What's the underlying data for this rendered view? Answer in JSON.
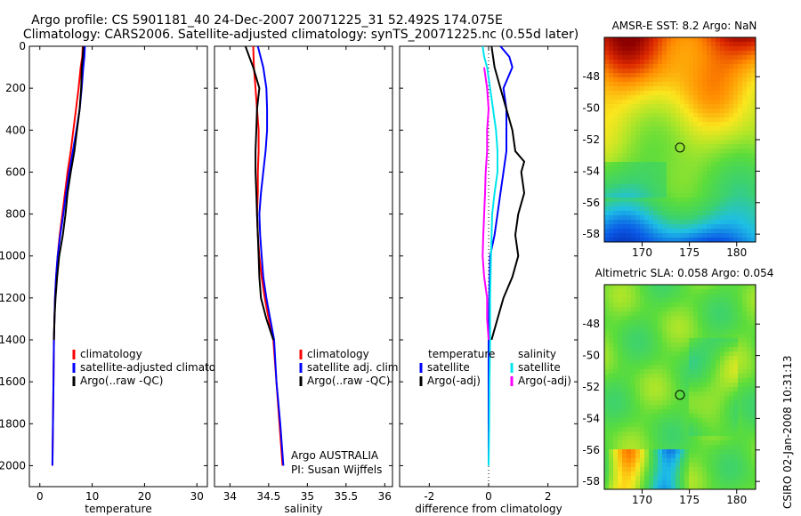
{
  "title_line1": "Argo profile: CS 5901181_40 24-Dec-2007 20071225_31 52.492S 174.075E",
  "title_line2": "Climatology: CARS2006. Satellite-adjusted climatology: synTS_20071225.nc (0.55d later)",
  "credit_text": "CSIRO 02-Jan-2008 10:31:13",
  "colors": {
    "climatology": "#ff0000",
    "satellite": "#0000ff",
    "argo": "#000000",
    "sal_sat": "#00e5ee",
    "sal_argo": "#ff00ff"
  },
  "chart_data": [
    {
      "type": "line",
      "xlabel": "temperature",
      "xlim": [
        -2,
        32
      ],
      "ylim": [
        0,
        2100
      ],
      "y_reversed": true,
      "x_ticks": [
        0,
        10,
        20,
        30
      ],
      "y_ticks": [
        0,
        200,
        400,
        600,
        800,
        1000,
        1200,
        1400,
        1600,
        1800,
        2000
      ],
      "legend": [
        "climatology",
        "satellite-adjusted climatology",
        "Argo(..raw -QC)"
      ],
      "series": [
        {
          "name": "climatology",
          "color": "climatology",
          "points": [
            [
              8.2,
              0
            ],
            [
              8.1,
              50
            ],
            [
              7.8,
              100
            ],
            [
              7.4,
              200
            ],
            [
              6.9,
              300
            ],
            [
              6.4,
              400
            ],
            [
              5.9,
              500
            ],
            [
              5.3,
              600
            ],
            [
              4.8,
              700
            ],
            [
              4.3,
              800
            ],
            [
              3.8,
              900
            ],
            [
              3.4,
              1000
            ],
            [
              3.1,
              1100
            ],
            [
              2.9,
              1200
            ],
            [
              2.8,
              1300
            ],
            [
              2.7,
              1400
            ],
            [
              2.6,
              1600
            ],
            [
              2.5,
              1800
            ],
            [
              2.4,
              2000
            ]
          ]
        },
        {
          "name": "satellite-adjusted climatology",
          "color": "satellite",
          "points": [
            [
              8.6,
              0
            ],
            [
              8.5,
              50
            ],
            [
              8.3,
              100
            ],
            [
              8.0,
              200
            ],
            [
              7.6,
              300
            ],
            [
              7.0,
              400
            ],
            [
              6.3,
              500
            ],
            [
              5.6,
              600
            ],
            [
              5.0,
              700
            ],
            [
              4.5,
              800
            ],
            [
              3.9,
              900
            ],
            [
              3.4,
              1000
            ],
            [
              3.1,
              1100
            ],
            [
              2.9,
              1200
            ],
            [
              2.8,
              1300
            ],
            [
              2.7,
              1400
            ],
            [
              2.6,
              1600
            ],
            [
              2.5,
              1800
            ],
            [
              2.4,
              2000
            ]
          ]
        },
        {
          "name": "Argo(..raw -QC)",
          "color": "argo",
          "points": [
            [
              8.3,
              0
            ],
            [
              8.2,
              50
            ],
            [
              8.0,
              100
            ],
            [
              7.9,
              200
            ],
            [
              7.6,
              300
            ],
            [
              7.1,
              400
            ],
            [
              6.6,
              500
            ],
            [
              5.9,
              600
            ],
            [
              5.3,
              700
            ],
            [
              4.9,
              800
            ],
            [
              4.4,
              900
            ],
            [
              3.7,
              1000
            ],
            [
              3.3,
              1100
            ],
            [
              3.0,
              1200
            ],
            [
              2.8,
              1300
            ],
            [
              2.7,
              1400
            ]
          ]
        }
      ]
    },
    {
      "type": "line",
      "xlabel": "salinity",
      "xlim": [
        33.8,
        36.1
      ],
      "ylim": [
        0,
        2100
      ],
      "y_reversed": true,
      "x_ticks": [
        34,
        34.5,
        35,
        35.5,
        36
      ],
      "y_ticks": [
        0,
        200,
        400,
        600,
        800,
        1000,
        1200,
        1400,
        1600,
        1800,
        2000
      ],
      "legend": [
        "climatology",
        "satellite adj. clim.",
        "Argo(..raw -QC)"
      ],
      "annotation_line1": "Argo AUSTRALIA",
      "annotation_line2": "PI: Susan Wijffels",
      "series": [
        {
          "name": "climatology",
          "color": "climatology",
          "points": [
            [
              34.3,
              0
            ],
            [
              34.31,
              100
            ],
            [
              34.33,
              200
            ],
            [
              34.35,
              300
            ],
            [
              34.37,
              400
            ],
            [
              34.37,
              500
            ],
            [
              34.36,
              600
            ],
            [
              34.36,
              700
            ],
            [
              34.35,
              800
            ],
            [
              34.36,
              900
            ],
            [
              34.38,
              1000
            ],
            [
              34.41,
              1100
            ],
            [
              34.45,
              1200
            ],
            [
              34.5,
              1300
            ],
            [
              34.56,
              1400
            ],
            [
              34.6,
              1600
            ],
            [
              34.64,
              1800
            ],
            [
              34.68,
              2000
            ]
          ]
        },
        {
          "name": "satellite adj. clim.",
          "color": "satellite",
          "points": [
            [
              34.36,
              0
            ],
            [
              34.43,
              100
            ],
            [
              34.47,
              200
            ],
            [
              34.48,
              300
            ],
            [
              34.48,
              400
            ],
            [
              34.46,
              500
            ],
            [
              34.43,
              600
            ],
            [
              34.4,
              700
            ],
            [
              34.38,
              800
            ],
            [
              34.39,
              900
            ],
            [
              34.41,
              1000
            ],
            [
              34.43,
              1100
            ],
            [
              34.47,
              1200
            ],
            [
              34.52,
              1300
            ],
            [
              34.57,
              1400
            ],
            [
              34.6,
              1600
            ],
            [
              34.65,
              1800
            ],
            [
              34.69,
              2000
            ]
          ]
        },
        {
          "name": "Argo(..raw -QC)",
          "color": "argo",
          "points": [
            [
              34.2,
              0
            ],
            [
              34.25,
              50
            ],
            [
              34.3,
              100
            ],
            [
              34.38,
              200
            ],
            [
              34.35,
              300
            ],
            [
              34.34,
              400
            ],
            [
              34.33,
              500
            ],
            [
              34.33,
              600
            ],
            [
              34.34,
              700
            ],
            [
              34.35,
              800
            ],
            [
              34.36,
              900
            ],
            [
              34.37,
              1000
            ],
            [
              34.38,
              1100
            ],
            [
              34.4,
              1200
            ],
            [
              34.47,
              1300
            ],
            [
              34.56,
              1400
            ]
          ]
        }
      ]
    },
    {
      "type": "line",
      "xlabel": "difference from climatology",
      "xlim": [
        -3,
        3
      ],
      "ylim": [
        0,
        2100
      ],
      "y_reversed": true,
      "x_ticks": [
        -2,
        0,
        2
      ],
      "y_ticks": [
        0,
        200,
        400,
        600,
        800,
        1000,
        1200,
        1400,
        1600,
        1800,
        2000
      ],
      "legend_left": {
        "heading": "temperature",
        "items": [
          "satellite",
          "Argo(-adj)"
        ]
      },
      "legend_right": {
        "heading": "salinity",
        "items": [
          "satellite",
          "Argo(-adj)"
        ]
      },
      "series": [
        {
          "name": "temperature satellite",
          "color": "satellite",
          "points": [
            [
              0.4,
              0
            ],
            [
              0.7,
              50
            ],
            [
              0.8,
              100
            ],
            [
              0.5,
              200
            ],
            [
              0.6,
              300
            ],
            [
              0.6,
              400
            ],
            [
              0.6,
              500
            ],
            [
              0.5,
              600
            ],
            [
              0.4,
              700
            ],
            [
              0.3,
              800
            ],
            [
              0.2,
              900
            ],
            [
              0.05,
              1000
            ],
            [
              0.02,
              1200
            ],
            [
              0,
              1400
            ],
            [
              0,
              1600
            ],
            [
              0,
              1800
            ],
            [
              0,
              2000
            ]
          ]
        },
        {
          "name": "temperature Argo(-adj)",
          "color": "argo",
          "points": [
            [
              0.1,
              0
            ],
            [
              0.2,
              100
            ],
            [
              0.4,
              200
            ],
            [
              0.6,
              300
            ],
            [
              0.8,
              400
            ],
            [
              0.9,
              500
            ],
            [
              1.2,
              550
            ],
            [
              1.1,
              600
            ],
            [
              1.2,
              700
            ],
            [
              1.0,
              800
            ],
            [
              0.9,
              900
            ],
            [
              1.0,
              1000
            ],
            [
              0.8,
              1100
            ],
            [
              0.5,
              1200
            ],
            [
              0.3,
              1300
            ],
            [
              0.1,
              1400
            ]
          ]
        },
        {
          "name": "salinity satellite",
          "color": "sal_sat",
          "points": [
            [
              -0.2,
              0
            ],
            [
              -0.15,
              50
            ],
            [
              -0.05,
              100
            ],
            [
              0.05,
              200
            ],
            [
              0.15,
              300
            ],
            [
              0.25,
              400
            ],
            [
              0.3,
              500
            ],
            [
              0.3,
              600
            ],
            [
              0.2,
              700
            ],
            [
              0.12,
              800
            ],
            [
              0.08,
              1000
            ],
            [
              0.05,
              1200
            ],
            [
              0.05,
              1400
            ],
            [
              0.03,
              1600
            ],
            [
              0.02,
              1800
            ],
            [
              0,
              2000
            ]
          ]
        },
        {
          "name": "salinity Argo(-adj)",
          "color": "sal_argo",
          "points": [
            [
              -0.15,
              100
            ],
            [
              -0.05,
              200
            ],
            [
              0,
              300
            ],
            [
              -0.05,
              400
            ],
            [
              -0.05,
              500
            ],
            [
              -0.1,
              600
            ],
            [
              -0.12,
              700
            ],
            [
              -0.15,
              800
            ],
            [
              -0.18,
              900
            ],
            [
              -0.2,
              1000
            ],
            [
              -0.15,
              1100
            ],
            [
              -0.05,
              1200
            ],
            [
              -0.05,
              1300
            ],
            [
              0,
              1400
            ]
          ]
        }
      ]
    },
    {
      "type": "heatmap",
      "title": "AMSR-E SST: 8.2 Argo: NaN",
      "xlim": [
        166,
        182
      ],
      "ylim": [
        -58.5,
        -45.5
      ],
      "x_ticks": [
        170,
        175,
        180
      ],
      "y_ticks": [
        -48,
        -50,
        -52,
        -54,
        -56,
        -58
      ],
      "marker": [
        174,
        -52.5
      ],
      "palette": "sst"
    },
    {
      "type": "heatmap",
      "title": "Altimetric SLA: 0.058 Argo: 0.054",
      "xlim": [
        166,
        182
      ],
      "ylim": [
        -58.5,
        -45.5
      ],
      "x_ticks": [
        170,
        175,
        180
      ],
      "y_ticks": [
        -48,
        -50,
        -52,
        -54,
        -56,
        -58
      ],
      "marker": [
        174,
        -52.5
      ],
      "palette": "sla"
    }
  ]
}
